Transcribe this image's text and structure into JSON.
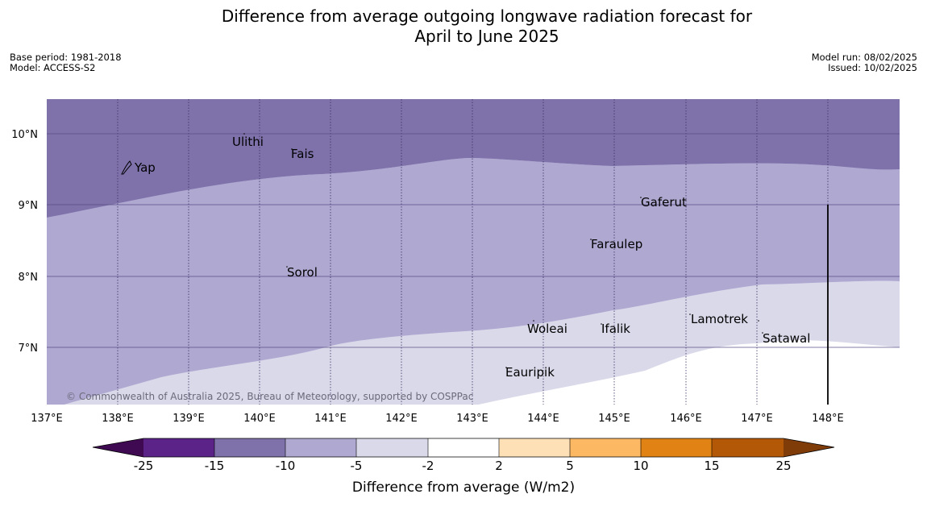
{
  "header": {
    "title_line1": "Difference from average outgoing longwave radiation forecast for",
    "title_line2": "April to June 2025",
    "base_period": "Base period: 1981-2018",
    "model": "Model: ACCESS-S2",
    "model_run": "Model run: 08/02/2025",
    "issued": "Issued: 10/02/2025"
  },
  "map": {
    "lon_labels": [
      "137°E",
      "138°E",
      "139°E",
      "140°E",
      "141°E",
      "142°E",
      "143°E",
      "144°E",
      "145°E",
      "146°E",
      "147°E",
      "148°E"
    ],
    "lat_labels": [
      "10°N",
      "9°N",
      "8°N",
      "7°N"
    ],
    "places": [
      {
        "name": "Yap"
      },
      {
        "name": "Ulithi"
      },
      {
        "name": "Fais"
      },
      {
        "name": "Gaferut"
      },
      {
        "name": "Faraulep"
      },
      {
        "name": "Sorol"
      },
      {
        "name": "Lamotrek"
      },
      {
        "name": "Woleai"
      },
      {
        "name": "Ifalik"
      },
      {
        "name": "Satawal"
      },
      {
        "name": "Eauripik"
      }
    ],
    "copyright": "© Commonwealth of Australia 2025, Bureau of Meteorology, supported by COSPPac",
    "colors": {
      "band_minus15_minus10": "#7f72ab",
      "band_minus10_minus5": "#afa8d1",
      "band_minus5_minus2": "#d9d9ea"
    }
  },
  "colorbar": {
    "label": "Difference from average (W/m2)",
    "ticks": [
      "-25",
      "-15",
      "-10",
      "-5",
      "-2",
      "2",
      "5",
      "10",
      "15",
      "25"
    ],
    "colors": [
      "#3f0a52",
      "#5b2387",
      "#7f72ab",
      "#afa8d1",
      "#d9d9ea",
      "#ffffff",
      "#fee0b6",
      "#fdb863",
      "#e08214",
      "#b35806",
      "#7f3b08"
    ]
  }
}
